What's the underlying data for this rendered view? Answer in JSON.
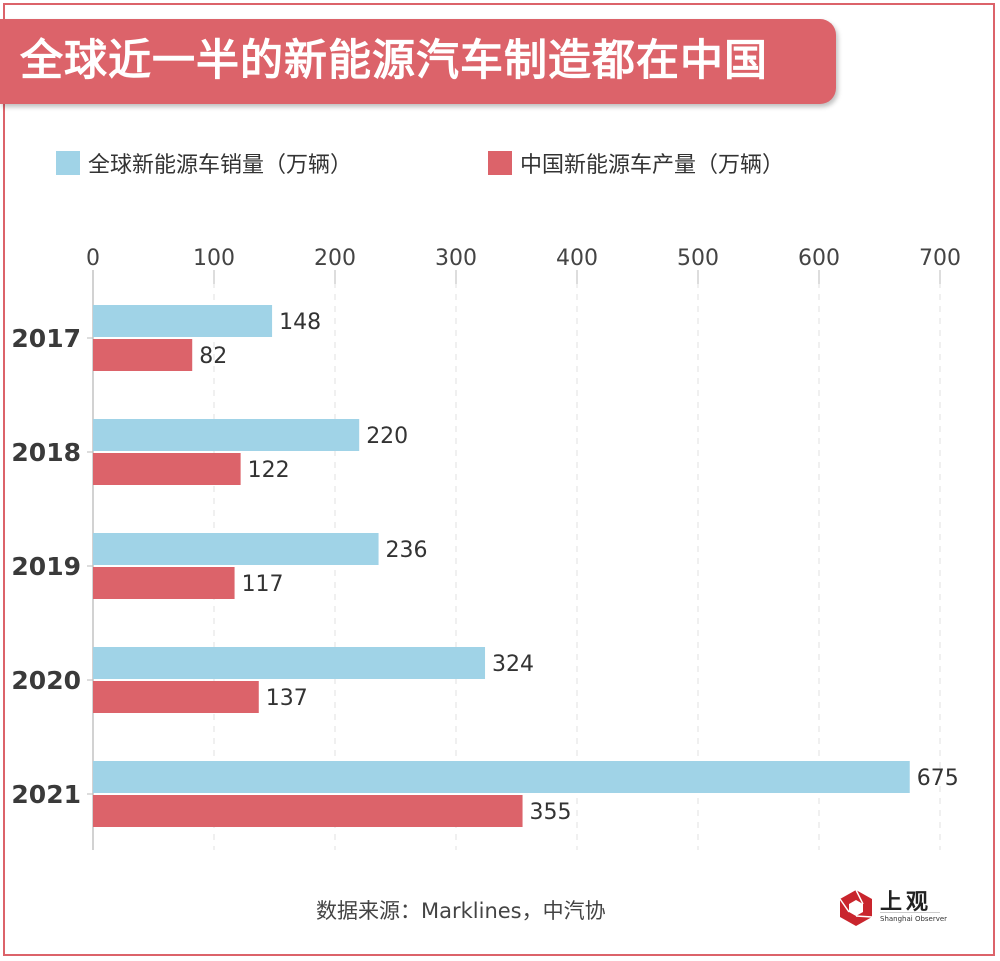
{
  "title": "全球近一半的新能源汽车制造都在中国",
  "legend": [
    {
      "label": "全球新能源车销量（万辆）",
      "color": "#a0d3e7"
    },
    {
      "label": "中国新能源车产量（万辆）",
      "color": "#dc636a"
    }
  ],
  "source": "数据来源：Marklines，中汽协",
  "logo": {
    "name_cn": "上观",
    "name_en": "Shanghai Observer",
    "icon": "hexagon-aperture-icon",
    "color": "#c9252d"
  },
  "colors": {
    "accent": "#dc636a",
    "blue": "#a0d3e7",
    "red": "#dc636a"
  },
  "chart_data": {
    "type": "bar",
    "orientation": "horizontal",
    "title": "全球近一半的新能源汽车制造都在中国",
    "xlabel": "",
    "ylabel": "",
    "categories": [
      "2017",
      "2018",
      "2019",
      "2020",
      "2021"
    ],
    "series": [
      {
        "name": "全球新能源车销量（万辆）",
        "color": "#a0d3e7",
        "values": [
          148,
          220,
          236,
          324,
          675
        ]
      },
      {
        "name": "中国新能源车产量（万辆）",
        "color": "#dc636a",
        "values": [
          82,
          122,
          117,
          137,
          355
        ]
      }
    ],
    "xlim": [
      0,
      700
    ],
    "xticks": [
      0,
      100,
      200,
      300,
      400,
      500,
      600,
      700
    ],
    "x_axis_position": "top",
    "grid": "vertical dashed",
    "legend_position": "top",
    "data_labels": true,
    "source": "数据来源：Marklines，中汽协"
  }
}
